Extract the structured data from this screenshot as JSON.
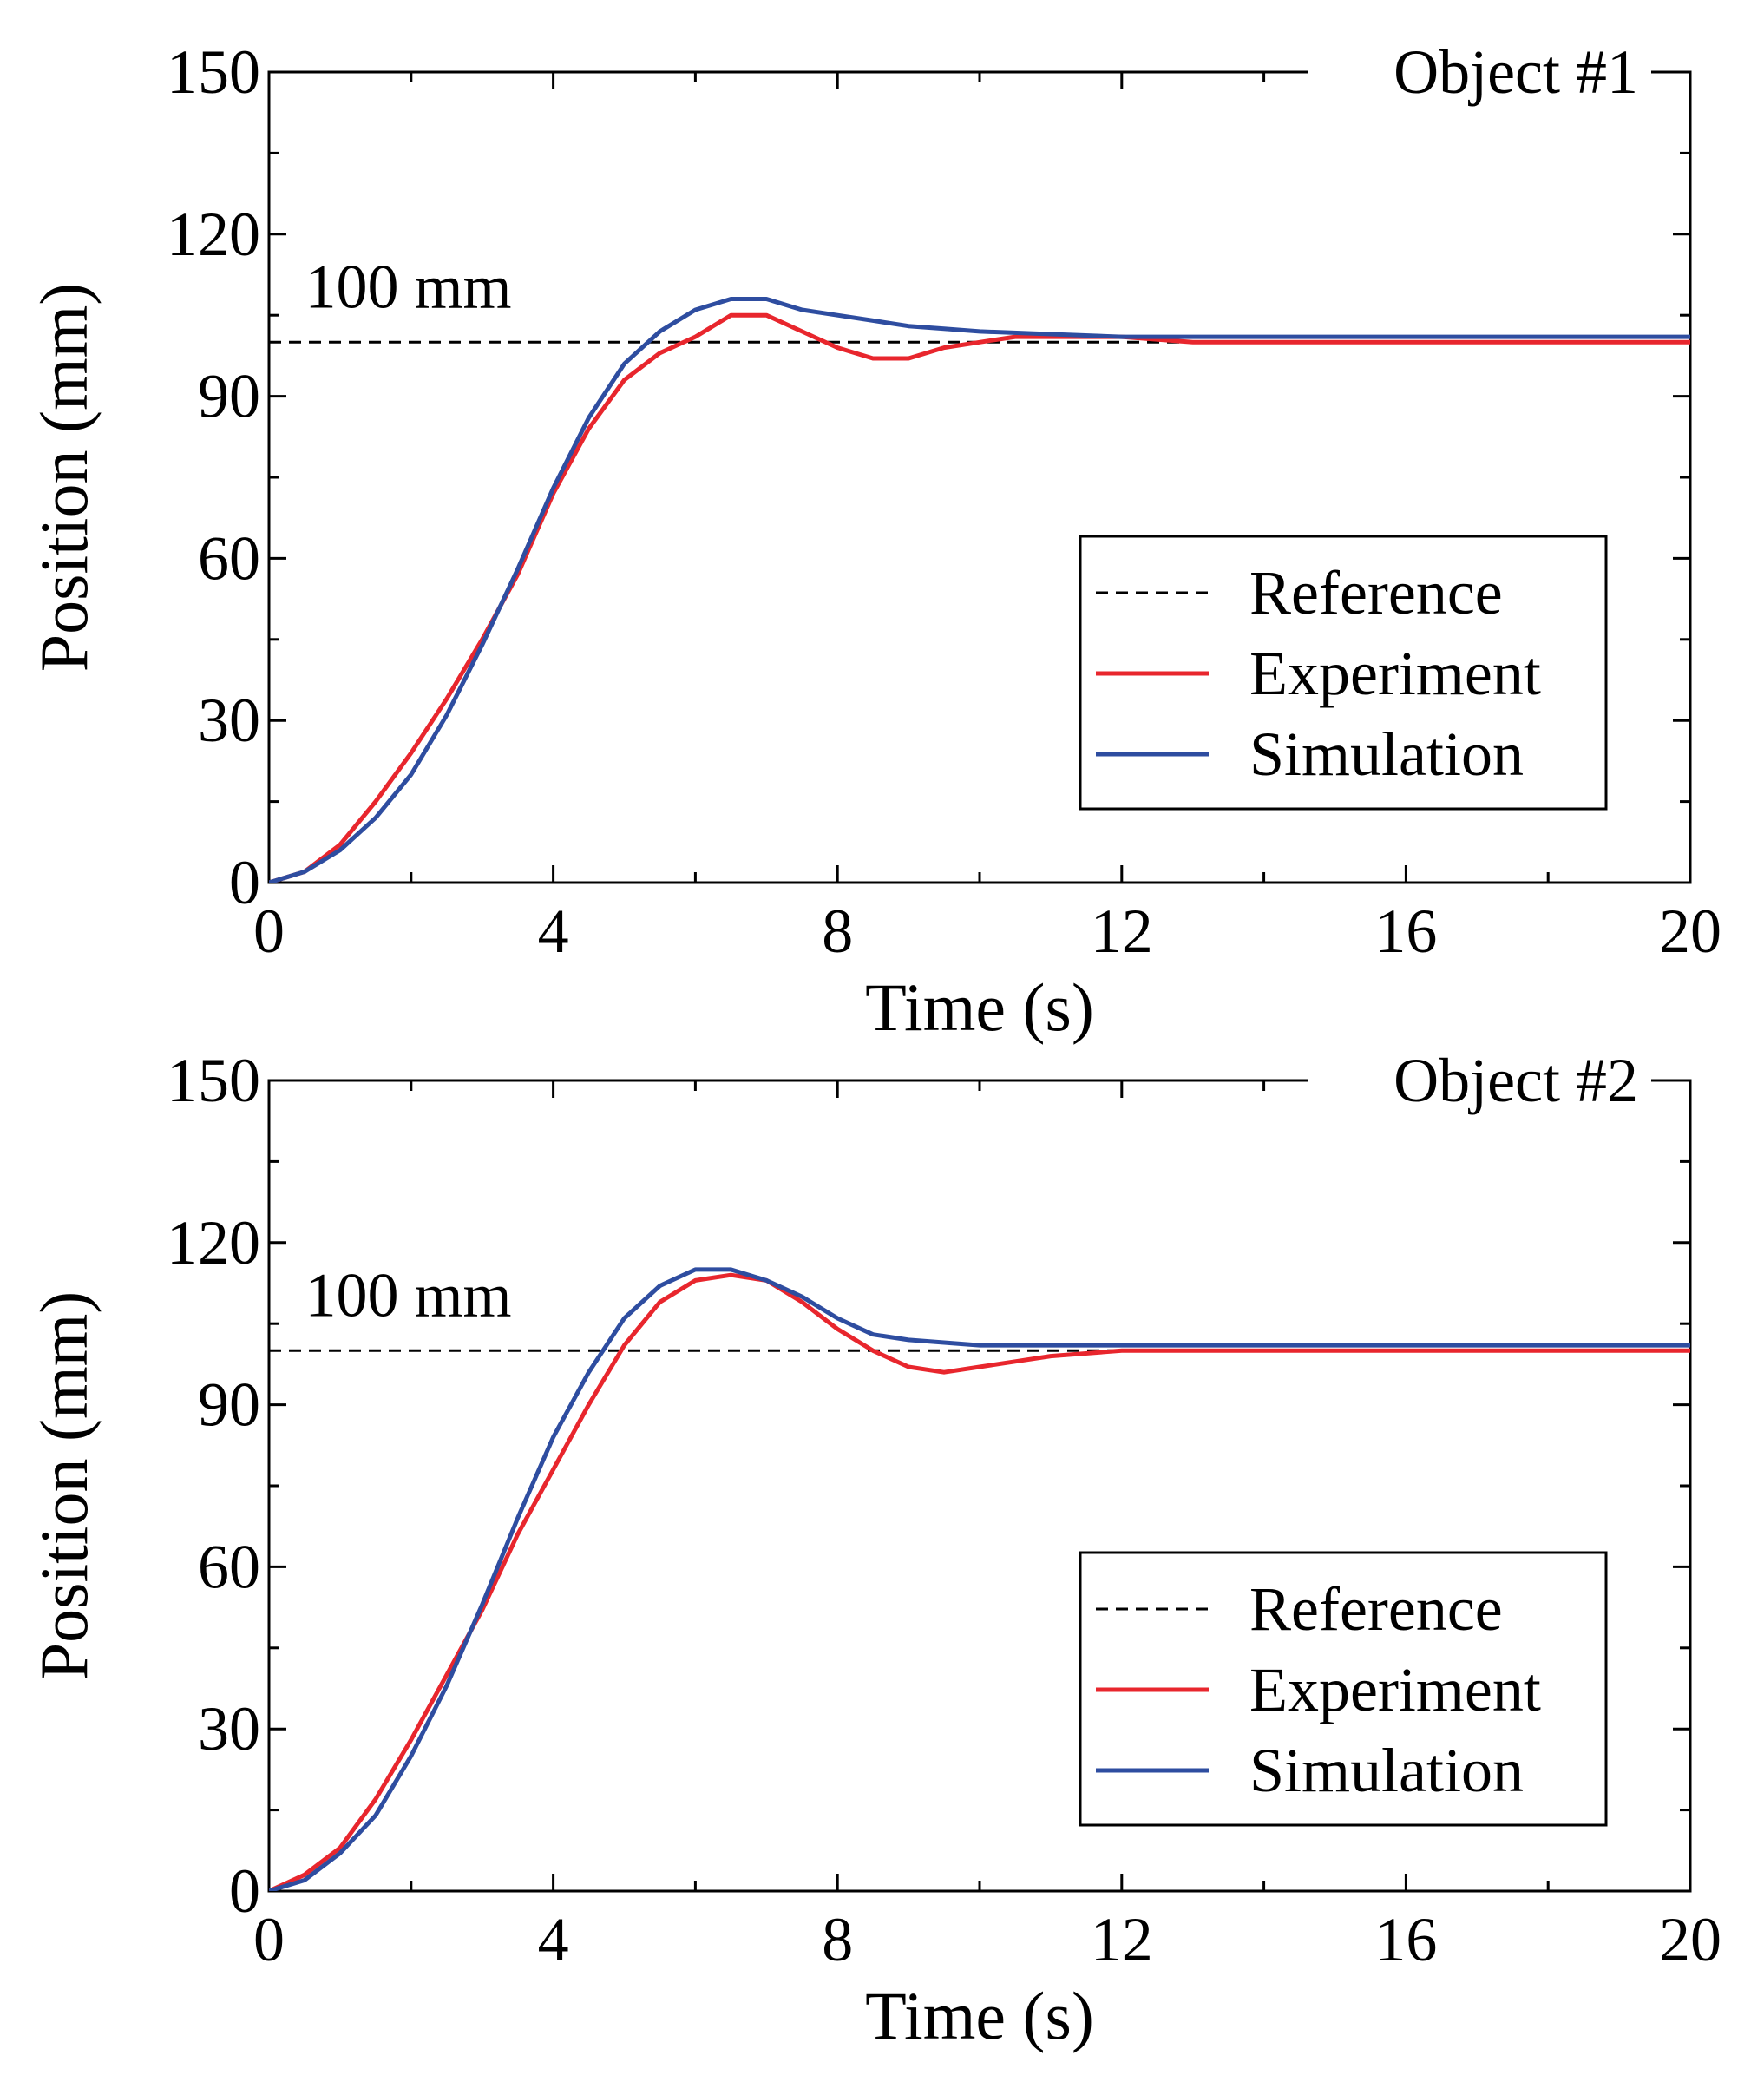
{
  "colors": {
    "reference": "#000000",
    "experiment": "#e8262d",
    "simulation": "#2e4da0"
  },
  "chart_data": [
    {
      "type": "line",
      "title": "Object #1",
      "xlabel": "Time (s)",
      "ylabel": "Position (mm)",
      "xlim": [
        0,
        20
      ],
      "ylim": [
        0,
        150
      ],
      "xticks": [
        0,
        4,
        8,
        12,
        16,
        20
      ],
      "xtick_labels": [
        "0",
        "4",
        "8",
        "12",
        "16",
        "20"
      ],
      "yticks": [
        0,
        30,
        60,
        90,
        120,
        150
      ],
      "ytick_labels": [
        "0",
        "30",
        "60",
        "90",
        "120",
        "150"
      ],
      "annotation": {
        "text": "100 mm",
        "x": 2.4,
        "y": 108
      },
      "legend": {
        "position": "center-right",
        "entries": [
          "Reference",
          "Experiment",
          "Simulation"
        ]
      },
      "series": [
        {
          "name": "Reference",
          "style": "dashed",
          "x": [
            0,
            20
          ],
          "y": [
            100,
            100
          ]
        },
        {
          "name": "Experiment",
          "style": "solid",
          "x": [
            0,
            0.5,
            1,
            1.5,
            2,
            2.5,
            3,
            3.5,
            4,
            4.5,
            5,
            5.5,
            6,
            6.5,
            7,
            7.5,
            8,
            8.5,
            9,
            9.5,
            10,
            10.5,
            11,
            12,
            13,
            14,
            15,
            16,
            17,
            18,
            19,
            20
          ],
          "y": [
            0,
            2,
            7,
            15,
            24,
            34,
            45,
            57,
            72,
            84,
            93,
            98,
            101,
            105,
            105,
            102,
            99,
            97,
            97,
            99,
            100,
            101,
            101,
            101,
            100,
            100,
            100,
            100,
            100,
            100,
            100,
            100
          ]
        },
        {
          "name": "Simulation",
          "style": "solid",
          "x": [
            0,
            0.5,
            1,
            1.5,
            2,
            2.5,
            3,
            3.5,
            4,
            4.5,
            5,
            5.5,
            6,
            6.5,
            7,
            7.5,
            8,
            8.5,
            9,
            9.5,
            10,
            11,
            12,
            13,
            14,
            15,
            16,
            17,
            18,
            19,
            20
          ],
          "y": [
            0,
            2,
            6,
            12,
            20,
            31,
            44,
            58,
            73,
            86,
            96,
            102,
            106,
            108,
            108,
            106,
            105,
            104,
            103,
            102.5,
            102,
            101.5,
            101,
            101,
            101,
            101,
            101,
            101,
            101,
            101,
            101
          ]
        }
      ]
    },
    {
      "type": "line",
      "title": "Object #2",
      "xlabel": "Time (s)",
      "ylabel": "Position (mm)",
      "xlim": [
        0,
        20
      ],
      "ylim": [
        0,
        150
      ],
      "xticks": [
        0,
        4,
        8,
        12,
        16,
        20
      ],
      "xtick_labels": [
        "0",
        "4",
        "8",
        "12",
        "16",
        "20"
      ],
      "yticks": [
        0,
        30,
        60,
        90,
        120,
        150
      ],
      "ytick_labels": [
        "0",
        "30",
        "60",
        "90",
        "120",
        "150"
      ],
      "annotation": {
        "text": "100 mm",
        "x": 2.4,
        "y": 108
      },
      "legend": {
        "position": "bottom-right",
        "entries": [
          "Reference",
          "Experiment",
          "Simulation"
        ]
      },
      "series": [
        {
          "name": "Reference",
          "style": "dashed",
          "x": [
            0,
            20
          ],
          "y": [
            100,
            100
          ]
        },
        {
          "name": "Experiment",
          "style": "solid",
          "x": [
            0,
            0.5,
            1,
            1.5,
            2,
            2.5,
            3,
            3.5,
            4,
            4.5,
            5,
            5.5,
            6,
            6.5,
            7,
            7.5,
            8,
            8.5,
            9,
            9.5,
            10,
            10.5,
            11,
            12,
            13,
            14,
            15,
            16,
            17,
            18,
            19,
            20
          ],
          "y": [
            0,
            3,
            8,
            17,
            28,
            40,
            52,
            66,
            78,
            90,
            101,
            109,
            113,
            114,
            113,
            109,
            104,
            100,
            97,
            96,
            97,
            98,
            99,
            100,
            100,
            100,
            100,
            100,
            100,
            100,
            100,
            100
          ]
        },
        {
          "name": "Simulation",
          "style": "solid",
          "x": [
            0,
            0.5,
            1,
            1.5,
            2,
            2.5,
            3,
            3.5,
            4,
            4.5,
            5,
            5.5,
            6,
            6.5,
            7,
            7.5,
            8,
            8.5,
            9,
            9.5,
            10,
            11,
            12,
            13,
            14,
            15,
            16,
            17,
            18,
            19,
            20
          ],
          "y": [
            0,
            2,
            7,
            14,
            25,
            38,
            53,
            69,
            84,
            96,
            106,
            112,
            115,
            115,
            113,
            110,
            106,
            103,
            102,
            101.5,
            101,
            101,
            101,
            101,
            101,
            101,
            101,
            101,
            101,
            101,
            101
          ]
        }
      ]
    }
  ]
}
